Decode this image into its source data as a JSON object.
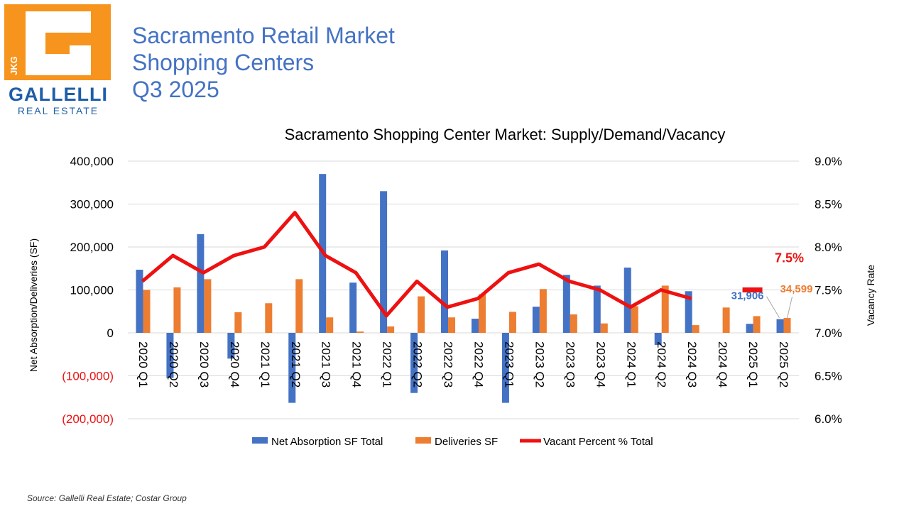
{
  "brand": {
    "logo_name": "GALLELLI",
    "logo_sub": "REAL ESTATE",
    "logo_tag": "JKG",
    "colors": {
      "orange": "#f7941d",
      "blue": "#1f5ea8"
    }
  },
  "page": {
    "title_lines": [
      "Sacramento Retail Market",
      "Shopping Centers",
      "Q3 2025"
    ],
    "source": "Source: Gallelli Real Estate; Costar Group"
  },
  "chart_data": {
    "type": "bar",
    "title": "Sacramento Shopping Center Market: Supply/Demand/Vacancy",
    "ylabel": "Net Absorption/Deliveries (SF)",
    "y2label": "Vacancy Rate",
    "ylim": [
      -200000,
      400000
    ],
    "y2lim": [
      6.0,
      9.0
    ],
    "yticks": [
      -200000,
      -100000,
      0,
      100000,
      200000,
      300000,
      400000
    ],
    "ytick_labels": [
      "(200,000)",
      "(100,000)",
      "0",
      "100,000",
      "200,000",
      "300,000",
      "400,000"
    ],
    "y2tick_labels": [
      "6.0%",
      "6.5%",
      "7.0%",
      "7.5%",
      "8.0%",
      "8.5%",
      "9.0%"
    ],
    "grid": true,
    "legend_position": "bottom",
    "categories": [
      "2020 Q1",
      "2020 Q2",
      "2020 Q3",
      "2020 Q4",
      "2021 Q1",
      "2021 Q2",
      "2021 Q3",
      "2021 Q4",
      "2022 Q1",
      "2022 Q2",
      "2022 Q3",
      "2022 Q4",
      "2023 Q1",
      "2023 Q2",
      "2023 Q3",
      "2023 Q4",
      "2024 Q1",
      "2024 Q2",
      "2024 Q3",
      "2024 Q4",
      "2025 Q1",
      "2025 Q2"
    ],
    "series": [
      {
        "name": "Net Absorption SF Total",
        "type": "bar",
        "axis": "left",
        "color": "#4472c4",
        "values": [
          147000,
          -105000,
          230000,
          -60000,
          0,
          -163000,
          370000,
          117000,
          330000,
          -140000,
          192000,
          33000,
          -163000,
          61000,
          135000,
          110000,
          152000,
          -28000,
          97000,
          0,
          21000,
          31906
        ]
      },
      {
        "name": "Deliveries SF",
        "type": "bar",
        "axis": "left",
        "color": "#ed7d31",
        "values": [
          100000,
          106000,
          125000,
          48000,
          69000,
          125000,
          36000,
          3000,
          15000,
          85000,
          36000,
          90000,
          49000,
          102000,
          43000,
          22000,
          62000,
          110000,
          18000,
          59000,
          39000,
          34599
        ]
      },
      {
        "name": "Vacant Percent % Total",
        "type": "line",
        "axis": "right",
        "color": "#ee1111",
        "values": [
          7.6,
          7.9,
          7.7,
          7.9,
          8.0,
          8.4,
          7.9,
          7.7,
          7.2,
          7.6,
          7.3,
          7.4,
          7.7,
          7.8,
          7.6,
          7.5,
          7.3,
          7.5,
          7.4,
          null,
          7.5,
          null
        ]
      }
    ],
    "annotations": [
      {
        "text": "31,906",
        "color": "#4472c4"
      },
      {
        "text": "34,599",
        "color": "#ed7d31"
      },
      {
        "text": "7.5%",
        "color": "#ee1111"
      }
    ]
  }
}
